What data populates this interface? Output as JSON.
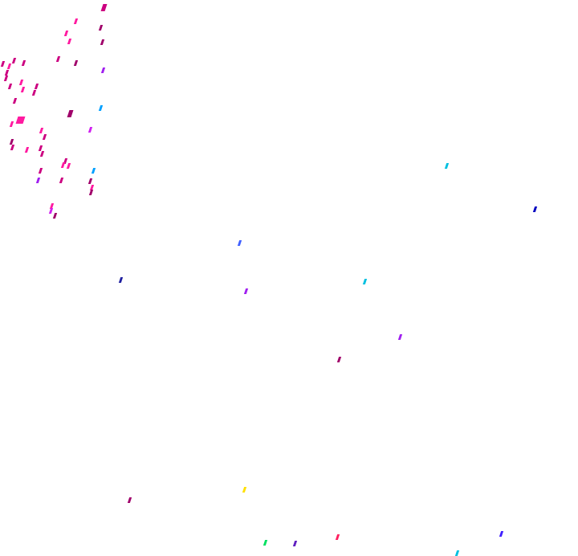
{
  "palette": {
    "magenta": "#ff1aa0",
    "deep_pink": "#cc0080",
    "dark_magenta": "#a0006a",
    "purple": "#a020f0",
    "violet": "#d020f0",
    "sky_blue": "#00a0ff",
    "cyan": "#00c0e0",
    "navy": "#0000c0",
    "royal_blue": "#4060ff",
    "indigo": "#2020a0",
    "yellow": "#ffe000",
    "red_pink": "#ff2060",
    "blue_violet": "#4020ff",
    "green": "#00e060",
    "dark_violet": "#6020c0"
  }
}
